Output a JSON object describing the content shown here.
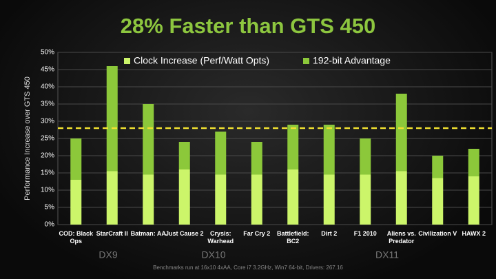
{
  "chart_data": {
    "type": "stacked_bar",
    "title": "28% Faster than GTS 450",
    "y_label": "Performance Increase over GTS 450",
    "categories": [
      "COD: Black Ops",
      "StarCraft II",
      "Batman: AA",
      "Just Cause 2",
      "Crysis: Warhead",
      "Far Cry 2",
      "Battlefield: BC2",
      "Dirt 2",
      "F1 2010",
      "Aliens vs. Predator",
      "Civilization V",
      "HAWX 2"
    ],
    "series": [
      {
        "name": "Clock Increase (Perf/Watt Opts)",
        "color": "#ccf56a",
        "values": [
          13,
          15.5,
          14.5,
          16,
          14.5,
          14.5,
          16,
          14.5,
          14.5,
          15.5,
          13.5,
          14
        ]
      },
      {
        "name": "192-bit Advantage",
        "color": "#8cc83a",
        "values": [
          12,
          30.5,
          20.5,
          8,
          12.5,
          9.5,
          13,
          14.5,
          10.5,
          22.5,
          6.5,
          8
        ]
      }
    ],
    "reference_line": 28,
    "reference_color": "#f0e030",
    "groups": [
      "DX9",
      "DX10",
      "DX11"
    ],
    "footnote": "Benchmarks run at 16x10 4xAA,  Core i7 3.2GHz, Win7 64-bit, Drivers: 267.16",
    "ylim": [
      0,
      50
    ],
    "yticks": [
      {
        "value": 0,
        "label": "0%"
      },
      {
        "value": 5,
        "label": "5%"
      },
      {
        "value": 10,
        "label": "10%"
      },
      {
        "value": 15,
        "label": "15%"
      },
      {
        "value": 20,
        "label": "20%"
      },
      {
        "value": 25,
        "label": "25%"
      },
      {
        "value": 30,
        "label": "30%"
      },
      {
        "value": 35,
        "label": "35%"
      },
      {
        "value": 40,
        "label": "40%"
      },
      {
        "value": 45,
        "label": "45%"
      },
      {
        "value": 50,
        "label": "50%"
      }
    ],
    "grid": true
  }
}
